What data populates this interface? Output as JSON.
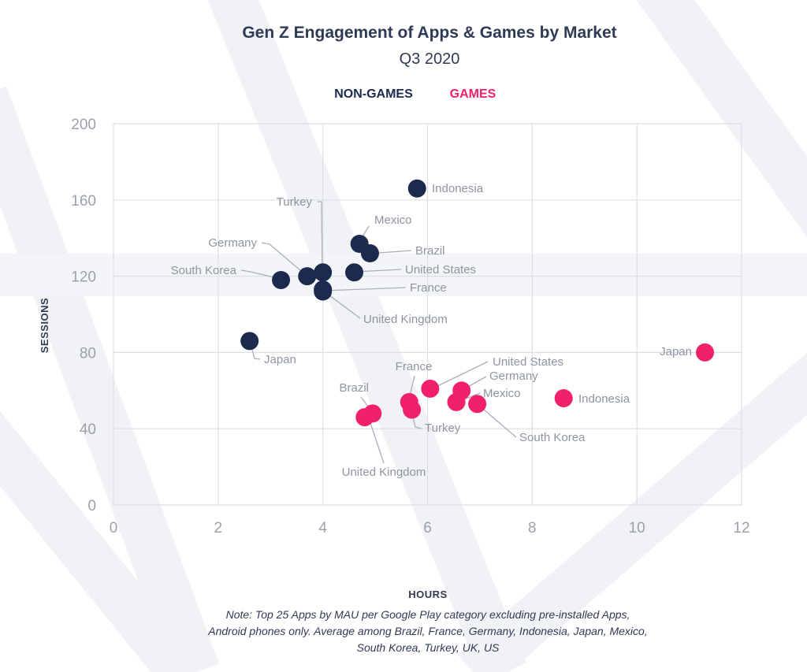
{
  "chart_data": {
    "type": "scatter",
    "title": "Gen Z Engagement of Apps & Games by Market",
    "subtitle": "Q3 2020",
    "xlabel": "HOURS",
    "ylabel": "SESSIONS",
    "xlim": [
      0,
      12
    ],
    "ylim": [
      0,
      200
    ],
    "x_ticks": [
      "0",
      "2",
      "4",
      "6",
      "8",
      "10",
      "12"
    ],
    "y_ticks": [
      "0",
      "40",
      "80",
      "120",
      "160",
      "200"
    ],
    "grid": true,
    "legend_position": "top-center",
    "series": [
      {
        "name": "NON-GAMES",
        "color": "#1c2a4e",
        "points": [
          {
            "label": "Indonesia",
            "x": 5.8,
            "y": 166
          },
          {
            "label": "Mexico",
            "x": 4.7,
            "y": 137
          },
          {
            "label": "Brazil",
            "x": 4.9,
            "y": 132
          },
          {
            "label": "Turkey",
            "x": 4.0,
            "y": 122
          },
          {
            "label": "United States",
            "x": 4.6,
            "y": 122
          },
          {
            "label": "Germany",
            "x": 3.7,
            "y": 120
          },
          {
            "label": "South Korea",
            "x": 3.2,
            "y": 118
          },
          {
            "label": "France",
            "x": 4.0,
            "y": 113
          },
          {
            "label": "United Kingdom",
            "x": 4.0,
            "y": 112
          },
          {
            "label": "Japan",
            "x": 2.6,
            "y": 86
          }
        ]
      },
      {
        "name": "GAMES",
        "color": "#f0206a",
        "points": [
          {
            "label": "Japan",
            "x": 11.3,
            "y": 80
          },
          {
            "label": "United States",
            "x": 6.05,
            "y": 61
          },
          {
            "label": "Germany",
            "x": 6.65,
            "y": 60
          },
          {
            "label": "Indonesia",
            "x": 8.6,
            "y": 56
          },
          {
            "label": "Mexico",
            "x": 6.55,
            "y": 54
          },
          {
            "label": "France",
            "x": 5.65,
            "y": 54
          },
          {
            "label": "South Korea",
            "x": 6.95,
            "y": 53
          },
          {
            "label": "Turkey",
            "x": 5.7,
            "y": 50
          },
          {
            "label": "Brazil",
            "x": 4.95,
            "y": 48
          },
          {
            "label": "United Kingdom",
            "x": 4.8,
            "y": 46
          }
        ]
      }
    ],
    "note": [
      "Note: Top 25 Apps by MAU per Google Play category excluding pre-installed Apps,",
      "Android phones only. Average among Brazil, France, Germany, Indonesia, Japan, Mexico,",
      "South Korea, Turkey, UK, US"
    ]
  }
}
